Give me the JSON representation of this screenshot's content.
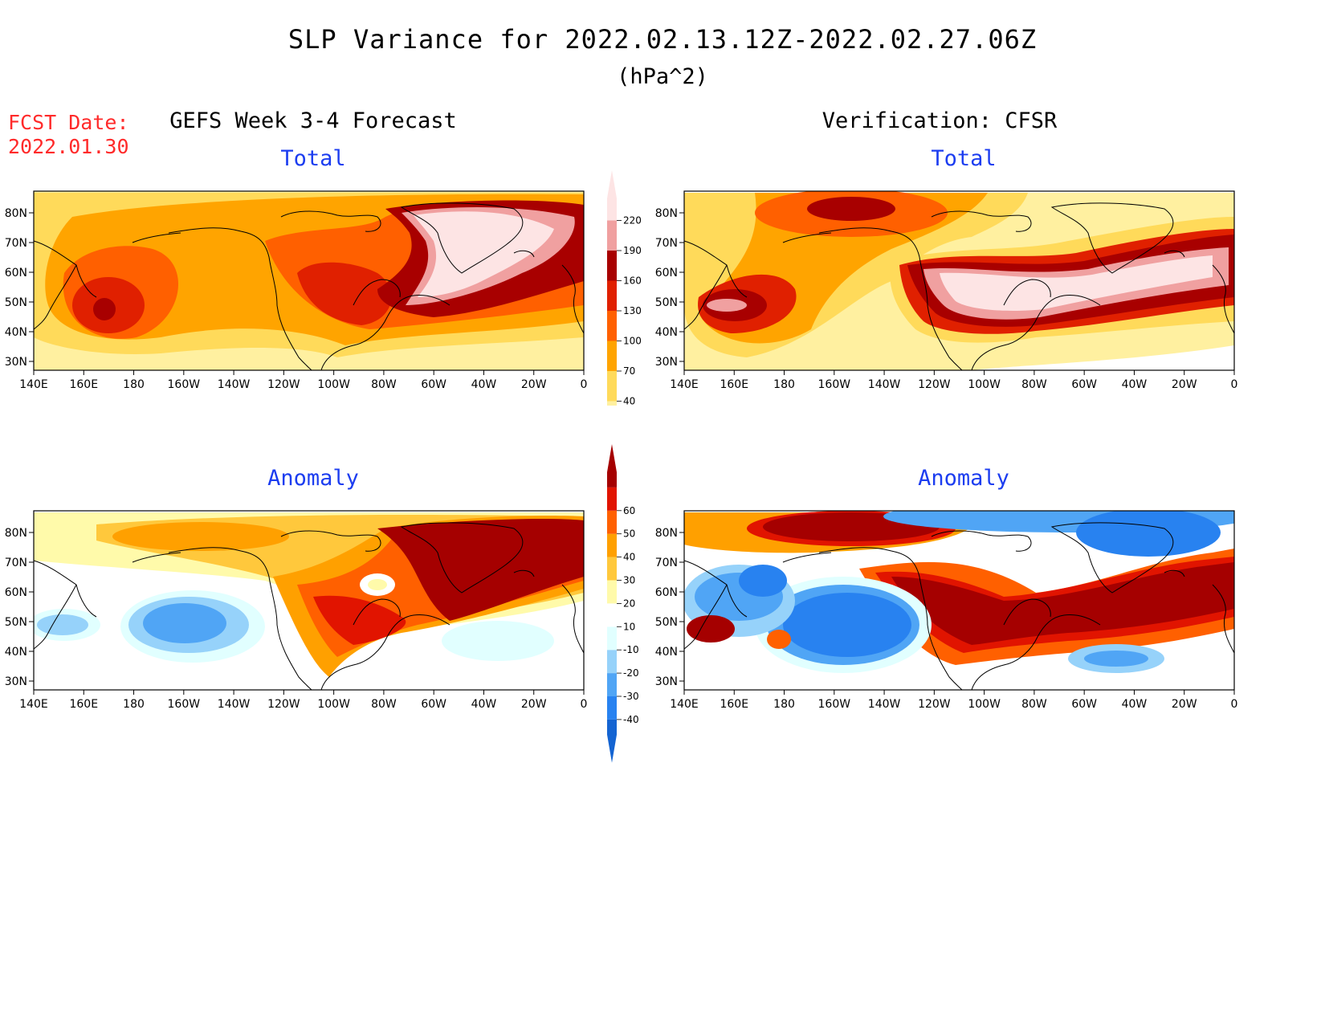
{
  "header": {
    "title": "SLP Variance for 2022.02.13.12Z-2022.02.27.06Z",
    "units": "(hPa^2)",
    "fcst_label": "FCST Date:",
    "fcst_date": "2022.01.30"
  },
  "columns": {
    "left_title": "GEFS Week 3-4 Forecast",
    "right_title": "Verification: CFSR"
  },
  "panels": {
    "top_left_title": "Total",
    "top_right_title": "Total",
    "bottom_left_title": "Anomaly",
    "bottom_right_title": "Anomaly"
  },
  "axes": {
    "lat_labels": [
      "80N",
      "70N",
      "60N",
      "50N",
      "40N",
      "30N"
    ],
    "lon_labels": [
      "140E",
      "160E",
      "180",
      "160W",
      "140W",
      "120W",
      "100W",
      "80W",
      "60W",
      "40W",
      "20W",
      "0"
    ]
  },
  "colorbars": {
    "total": {
      "levels": [
        "40",
        "70",
        "100",
        "130",
        "160",
        "190",
        "220"
      ],
      "colors": [
        "#fff0a0",
        "#ffda5a",
        "#ffa400",
        "#ff6000",
        "#e02000",
        "#a80000",
        "#f0a0a0",
        "#fde4e4"
      ]
    },
    "anomaly": {
      "levels": [
        "-40",
        "-30",
        "-20",
        "-10",
        "10",
        "20",
        "30",
        "40",
        "50",
        "60"
      ],
      "colors": [
        "#1464d2",
        "#2882f0",
        "#50a5f5",
        "#96d2fa",
        "#e1ffff",
        "#ffffff",
        "#fffaaa",
        "#ffc83c",
        "#ffa000",
        "#ff6000",
        "#e11400",
        "#a50000"
      ]
    }
  }
}
